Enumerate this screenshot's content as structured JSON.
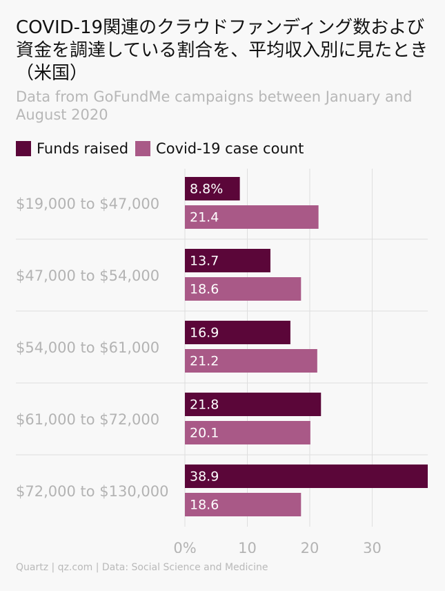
{
  "title": "COVID-19関連のクラウドファンディング数および資金を調達している割合を、平均収入別に見たとき（米国）",
  "subtitle": "Data from GoFundMe campaigns between January and August 2020",
  "legend": {
    "funds_label": "Funds raised",
    "cases_label": "Covid-19 case count"
  },
  "footer": "Quartz | qz.com | Data: Social Science and Medicine",
  "colors": {
    "funds": "#5b0639",
    "cases": "#a95987",
    "grid": "#dedede",
    "axis_text": "#b3b3b3",
    "bar_text": "#ffffff"
  },
  "chart_data": {
    "type": "bar",
    "orientation": "horizontal",
    "categories": [
      "$19,000 to $47,000",
      "$47,000 to $54,000",
      "$54,000 to $61,000",
      "$61,000 to $72,000",
      "$72,000 to $130,000"
    ],
    "series": [
      {
        "name": "Funds raised",
        "values": [
          8.8,
          13.7,
          16.9,
          21.8,
          38.9
        ],
        "labels": [
          "8.8%",
          "13.7",
          "16.9",
          "21.8",
          "38.9"
        ]
      },
      {
        "name": "Covid-19 case count",
        "values": [
          21.4,
          18.6,
          21.2,
          20.1,
          18.6
        ],
        "labels": [
          "21.4",
          "18.6",
          "21.2",
          "20.1",
          "18.6"
        ]
      }
    ],
    "xticks": [
      0,
      10,
      20,
      30
    ],
    "xtick_labels": [
      "0%",
      "10",
      "20",
      "30"
    ],
    "xlim": [
      0,
      38.9
    ],
    "grid": true,
    "legend_position": "top-left"
  }
}
